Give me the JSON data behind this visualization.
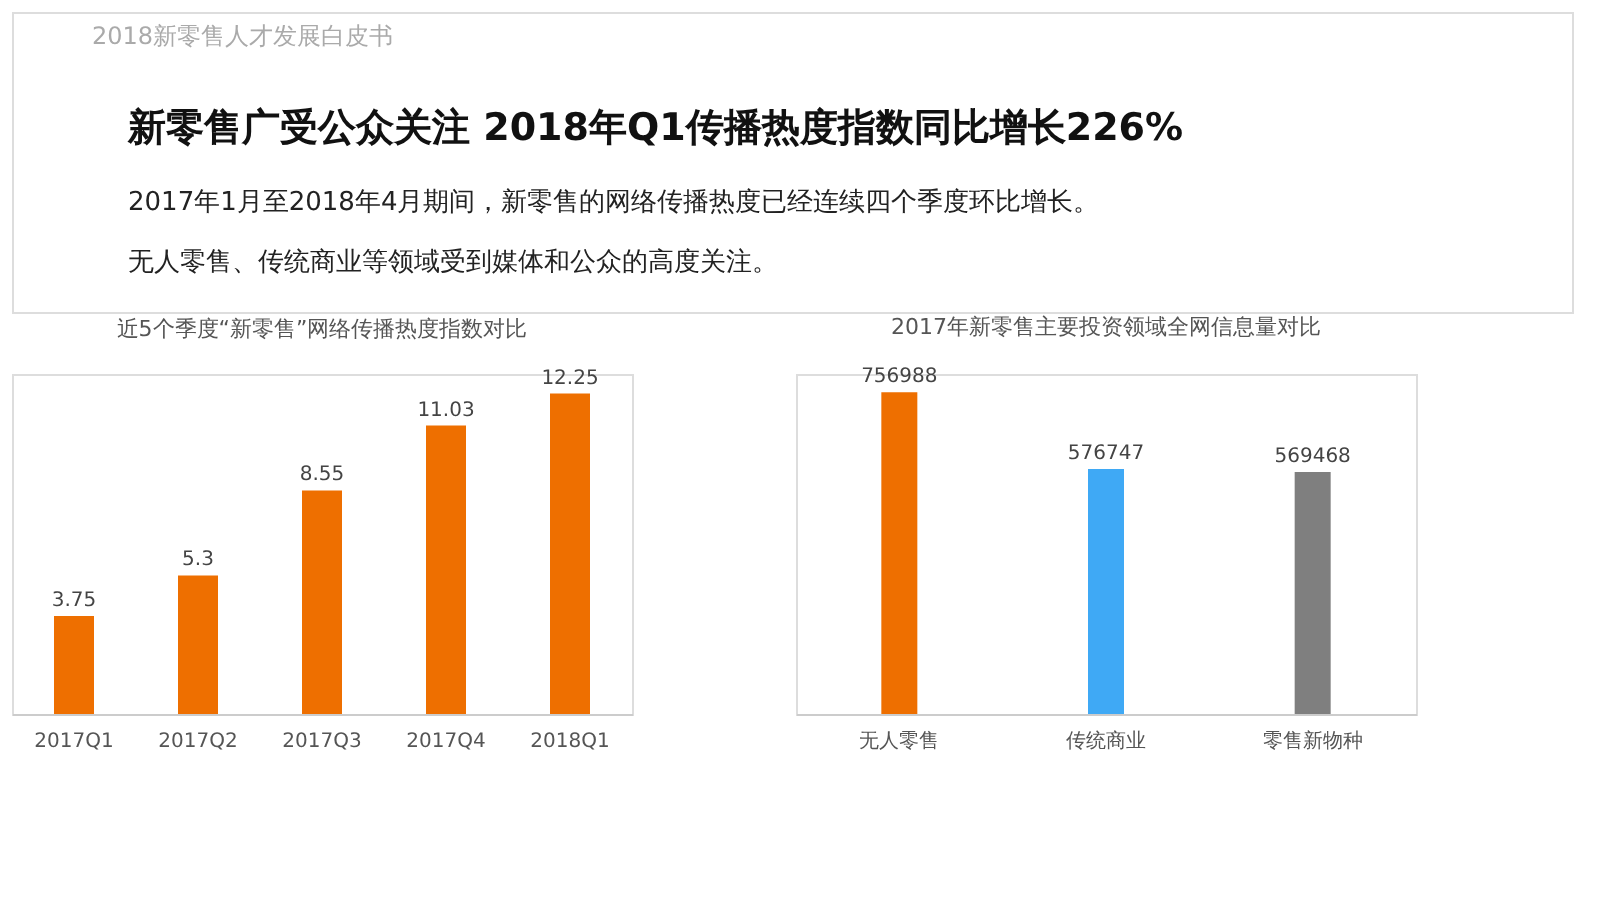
{
  "chart_data": [
    {
      "type": "other",
      "title": "新零售广受公众关注 2018年Q1传播热度指数同比增长226%",
      "annotations": [
        "2018新零售人才发展白皮书",
        "2017年1月至2018年4月期间，新零售的网络传播热度已经连续四个季度环比增长。",
        "无人零售、传统商业等领域受到媒体和公众的高度关注。"
      ]
    },
    {
      "type": "bar",
      "title": "近5个季度“新零售”网络传播热度指数对比",
      "categories": [
        "2017Q1",
        "2017Q2",
        "2017Q3",
        "2017Q4",
        "2018Q1"
      ],
      "values": [
        3.75,
        5.3,
        8.55,
        11.03,
        12.25
      ],
      "color": "#ee6f00",
      "data_labels": true
    },
    {
      "type": "bar",
      "title": "2017年新零售主要投资领域全网信息量对比",
      "categories": [
        "无人零售",
        "传统商业",
        "零售新物种"
      ],
      "values": [
        756988,
        576747,
        569468
      ],
      "colors": [
        "#ee6f00",
        "#3fa9f5",
        "#7f7f7f"
      ],
      "data_labels": true
    }
  ]
}
